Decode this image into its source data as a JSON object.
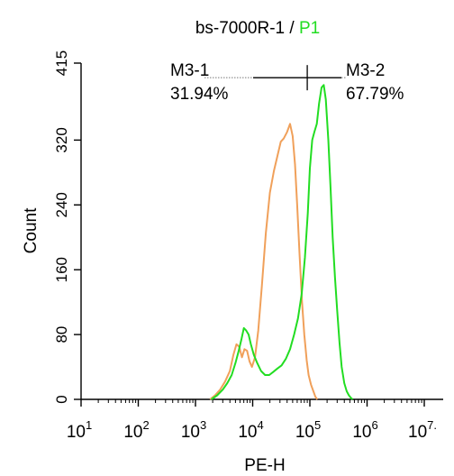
{
  "chart_data": {
    "type": "area",
    "title_main": "bs-7000R-1 / ",
    "title_gate": "P1",
    "xlabel": "PE-H",
    "ylabel": "Count",
    "x_scale": "log",
    "xlim": [
      10,
      10000000
    ],
    "ylim": [
      0,
      415
    ],
    "x_ticks": [
      {
        "base": "10",
        "exp": "1"
      },
      {
        "base": "10",
        "exp": "2"
      },
      {
        "base": "10",
        "exp": "3"
      },
      {
        "base": "10",
        "exp": "4"
      },
      {
        "base": "10",
        "exp": "5"
      },
      {
        "base": "10",
        "exp": "6"
      },
      {
        "base": "10",
        "exp": "7."
      }
    ],
    "y_ticks": [
      "0",
      "80",
      "160",
      "240",
      "320",
      "415"
    ],
    "series": [
      {
        "color": "#f0a05a",
        "x": [
          1800,
          2200,
          2700,
          3300,
          4000,
          4600,
          5200,
          5800,
          6500,
          7200,
          8000,
          8800,
          9700,
          11000,
          12500,
          14500,
          17000,
          20000,
          23500,
          27000,
          31000,
          35000,
          40000,
          45000,
          50000,
          55000,
          60000,
          66000,
          73000,
          80000,
          88000,
          95000,
          105000,
          115000,
          125000,
          135000
        ],
        "y": [
          0,
          5,
          12,
          22,
          35,
          55,
          68,
          65,
          52,
          62,
          60,
          47,
          40,
          52,
          85,
          140,
          205,
          255,
          282,
          300,
          318,
          322,
          330,
          340,
          325,
          290,
          240,
          180,
          120,
          80,
          48,
          30,
          18,
          10,
          3,
          0
        ]
      },
      {
        "color": "#22dd22",
        "x": [
          1900,
          2400,
          3000,
          3600,
          4300,
          5000,
          5700,
          6400,
          7000,
          7700,
          8500,
          9300,
          10500,
          12000,
          14000,
          16500,
          19500,
          23000,
          27000,
          32000,
          38000,
          45000,
          53000,
          62000,
          72000,
          82000,
          92000,
          100000,
          110000,
          120000,
          132000,
          145000,
          160000,
          175000,
          190000,
          210000,
          230000,
          250000,
          275000,
          300000,
          330000,
          360000,
          400000,
          440000,
          480000,
          520000,
          560000
        ],
        "y": [
          0,
          5,
          12,
          20,
          30,
          45,
          60,
          75,
          88,
          85,
          80,
          68,
          55,
          45,
          35,
          30,
          30,
          34,
          38,
          42,
          50,
          62,
          80,
          100,
          130,
          175,
          230,
          285,
          320,
          330,
          340,
          365,
          385,
          388,
          370,
          320,
          260,
          200,
          150,
          110,
          70,
          40,
          20,
          10,
          5,
          2,
          0
        ]
      }
    ],
    "markers": [
      {
        "label": "M3-1",
        "value": "31.94%"
      },
      {
        "label": "M3-2",
        "value": "67.79%"
      }
    ],
    "marker_split_x": 90000,
    "marker_y": 397
  }
}
